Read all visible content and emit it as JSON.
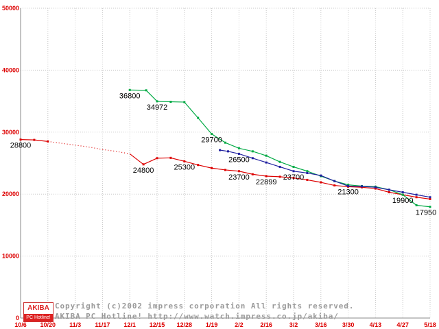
{
  "page": {
    "background": "#ffffff"
  },
  "footer": {
    "copyright_line1": "Copyright (c)2002 impress corporation All rights reserved.",
    "copyright_line2": "AKIBA PC Hotline! http://www.watch.impress.co.jp/akiba/",
    "logo_top": "AKIBA",
    "logo_bottom": "PC Hotline!"
  },
  "chart_data": {
    "type": "line",
    "title": "",
    "categories": [
      "10/6",
      "10/20",
      "11/3",
      "11/17",
      "12/1",
      "12/15",
      "12/28",
      "1/19",
      "2/2",
      "2/16",
      "3/2",
      "3/16",
      "3/30",
      "4/13",
      "4/27",
      "5/18"
    ],
    "ylim": [
      0,
      50000
    ],
    "yticks": [
      0,
      10000,
      20000,
      30000,
      40000,
      50000
    ],
    "grid": true,
    "tick_color": "#dd0000",
    "grid_color": "#c8c8c8",
    "axis_color": "#888888",
    "legend": "none",
    "series": [
      {
        "name": "red-series",
        "color": "#dd0000",
        "points": [
          {
            "i": 0,
            "v": 28800
          },
          {
            "i": 0.5,
            "v": 28750
          },
          {
            "i": 1,
            "v": 28500
          },
          {
            "i": 1.5,
            "v": 28200,
            "d": 1
          },
          {
            "i": 2,
            "v": 27900,
            "d": 1
          },
          {
            "i": 2.5,
            "v": 27600,
            "d": 1
          },
          {
            "i": 3,
            "v": 27200,
            "d": 1
          },
          {
            "i": 3.5,
            "v": 26900,
            "d": 1
          },
          {
            "i": 4,
            "v": 26500,
            "d": 1
          },
          {
            "i": 4.5,
            "v": 24800
          },
          {
            "i": 5,
            "v": 25800
          },
          {
            "i": 5.5,
            "v": 25850
          },
          {
            "i": 6,
            "v": 25300
          },
          {
            "i": 6.5,
            "v": 24700
          },
          {
            "i": 7,
            "v": 24200
          },
          {
            "i": 7.5,
            "v": 23900
          },
          {
            "i": 8,
            "v": 23700
          },
          {
            "i": 8.5,
            "v": 23200
          },
          {
            "i": 9,
            "v": 22899
          },
          {
            "i": 9.5,
            "v": 22800
          },
          {
            "i": 10,
            "v": 22600
          },
          {
            "i": 10.5,
            "v": 22300
          },
          {
            "i": 11,
            "v": 21900
          },
          {
            "i": 11.5,
            "v": 21400
          },
          {
            "i": 12,
            "v": 21200
          },
          {
            "i": 12.5,
            "v": 21100
          },
          {
            "i": 13,
            "v": 20900
          },
          {
            "i": 13.5,
            "v": 20300
          },
          {
            "i": 14,
            "v": 19900
          },
          {
            "i": 14.5,
            "v": 19500
          },
          {
            "i": 15,
            "v": 19200
          }
        ]
      },
      {
        "name": "green-series",
        "color": "#00aa44",
        "points": [
          {
            "i": 4,
            "v": 36800
          },
          {
            "i": 4.6,
            "v": 36750
          },
          {
            "i": 5,
            "v": 34972
          },
          {
            "i": 5.5,
            "v": 34900
          },
          {
            "i": 6,
            "v": 34850
          },
          {
            "i": 6.5,
            "v": 32300
          },
          {
            "i": 7,
            "v": 29700
          },
          {
            "i": 7.5,
            "v": 28300
          },
          {
            "i": 8,
            "v": 27400
          },
          {
            "i": 8.5,
            "v": 26900
          },
          {
            "i": 9,
            "v": 26200
          },
          {
            "i": 9.5,
            "v": 25200
          },
          {
            "i": 10,
            "v": 24400
          },
          {
            "i": 10.5,
            "v": 23700
          },
          {
            "i": 11,
            "v": 22900
          },
          {
            "i": 11.5,
            "v": 22100
          },
          {
            "i": 12,
            "v": 21500
          },
          {
            "i": 12.5,
            "v": 21300
          },
          {
            "i": 13,
            "v": 21200
          },
          {
            "i": 13.5,
            "v": 20700
          },
          {
            "i": 14,
            "v": 19900
          },
          {
            "i": 14.5,
            "v": 18200
          },
          {
            "i": 15,
            "v": 17950
          }
        ]
      },
      {
        "name": "blue-series",
        "color": "#2020a0",
        "points": [
          {
            "i": 7.3,
            "v": 27100
          },
          {
            "i": 7.6,
            "v": 26900
          },
          {
            "i": 8,
            "v": 26500
          },
          {
            "i": 8.5,
            "v": 25800
          },
          {
            "i": 9,
            "v": 25100
          },
          {
            "i": 9.5,
            "v": 24400
          },
          {
            "i": 10,
            "v": 23700
          },
          {
            "i": 10.5,
            "v": 23400
          },
          {
            "i": 11,
            "v": 23000
          },
          {
            "i": 11.5,
            "v": 22100
          },
          {
            "i": 12,
            "v": 21300
          },
          {
            "i": 12.5,
            "v": 21250
          },
          {
            "i": 13,
            "v": 21100
          },
          {
            "i": 13.5,
            "v": 20700
          },
          {
            "i": 14,
            "v": 20300
          },
          {
            "i": 14.5,
            "v": 19900
          },
          {
            "i": 15,
            "v": 19500
          }
        ]
      }
    ],
    "point_labels": [
      {
        "series": "red-series",
        "i": 0,
        "v": 28800,
        "text": "28800"
      },
      {
        "series": "red-series",
        "i": 4.5,
        "v": 24800,
        "text": "24800"
      },
      {
        "series": "red-series",
        "i": 6,
        "v": 25300,
        "text": "25300"
      },
      {
        "series": "red-series",
        "i": 8,
        "v": 23700,
        "text": "23700"
      },
      {
        "series": "red-series",
        "i": 9,
        "v": 22899,
        "text": "22899"
      },
      {
        "series": "red-series",
        "i": 14,
        "v": 19900,
        "text": "19900"
      },
      {
        "series": "green-series",
        "i": 4,
        "v": 36800,
        "text": "36800"
      },
      {
        "series": "green-series",
        "i": 5,
        "v": 34972,
        "text": "34972"
      },
      {
        "series": "green-series",
        "i": 7,
        "v": 29700,
        "text": "29700"
      },
      {
        "series": "green-series",
        "i": 15,
        "v": 17950,
        "text": "17950"
      },
      {
        "series": "blue-series",
        "i": 8,
        "v": 26500,
        "text": "26500"
      },
      {
        "series": "blue-series",
        "i": 10,
        "v": 23700,
        "text": "23700"
      },
      {
        "series": "blue-series",
        "i": 12,
        "v": 21300,
        "text": "21300"
      }
    ]
  }
}
